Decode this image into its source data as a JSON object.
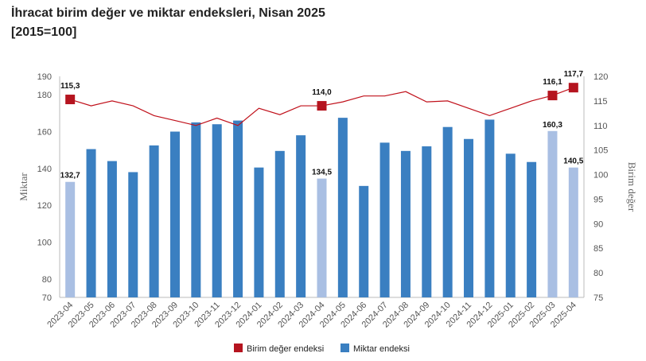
{
  "chart_data": {
    "type": "bar",
    "title": "İhracat birim değer ve miktar endeksleri, Nisan 2025",
    "subtitle": "[2015=100]",
    "categories": [
      "2023-04",
      "2023-05",
      "2023-06",
      "2023-07",
      "2023-08",
      "2023-09",
      "2023-10",
      "2023-11",
      "2023-12",
      "2024-01",
      "2024-02",
      "2024-03",
      "2024-04",
      "2024-05",
      "2024-06",
      "2024-07",
      "2024-08",
      "2024-09",
      "2024-10",
      "2024-11",
      "2024-12",
      "2025-01",
      "2025-02",
      "2025-03",
      "2025-04"
    ],
    "ylabel": "Miktar",
    "y2label": "Birim değer",
    "ylim": [
      70,
      190
    ],
    "y_ticks": [
      70,
      80,
      100,
      120,
      140,
      160,
      180,
      190
    ],
    "y2lim": [
      75,
      120
    ],
    "y2_ticks": [
      75,
      80,
      85,
      90,
      95,
      100,
      105,
      110,
      115,
      120
    ],
    "grid": false,
    "legend_position": "bottom",
    "series": [
      {
        "name": "Birim değer endeksi",
        "type": "line",
        "axis": "right",
        "color": "#c0101a",
        "marker_color": "#b5141f",
        "values": [
          115.3,
          114.0,
          115.0,
          114.0,
          112.0,
          111.0,
          110.0,
          111.5,
          110.0,
          113.5,
          112.2,
          114.0,
          114.0,
          114.8,
          116.0,
          116.0,
          116.9,
          114.8,
          115.0,
          113.5,
          112.0,
          113.5,
          115.0,
          116.1,
          117.7
        ],
        "markers": [
          0,
          12,
          23,
          24
        ],
        "labels": [
          {
            "index": 0,
            "text": "115,3"
          },
          {
            "index": 12,
            "text": "114,0"
          },
          {
            "index": 23,
            "text": "116,1"
          },
          {
            "index": 24,
            "text": "117,7"
          }
        ]
      },
      {
        "name": "Miktar endeksi",
        "type": "bar",
        "axis": "left",
        "color": "#3a7fc1",
        "highlight_color": "#a9bfe3",
        "values": [
          132.7,
          150.5,
          144.0,
          138.0,
          152.5,
          160.0,
          165.0,
          164.0,
          166.0,
          140.5,
          149.5,
          158.0,
          134.5,
          167.5,
          130.5,
          154.0,
          149.5,
          152.0,
          162.5,
          156.0,
          166.5,
          148.0,
          143.5,
          160.3,
          140.5
        ],
        "highlight": [
          0,
          12,
          23,
          24
        ],
        "labels": [
          {
            "index": 0,
            "text": "132,7"
          },
          {
            "index": 12,
            "text": "134,5"
          },
          {
            "index": 23,
            "text": "160,3"
          },
          {
            "index": 24,
            "text": "140,5"
          }
        ]
      }
    ]
  }
}
